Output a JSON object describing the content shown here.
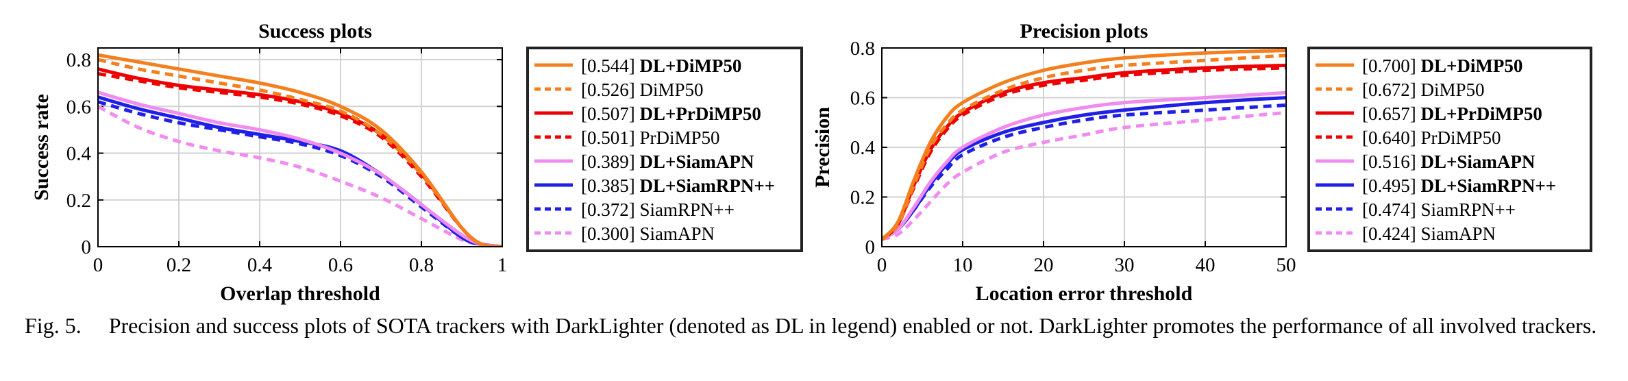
{
  "colors": {
    "orange": "#f47f1e",
    "red": "#ee0000",
    "violet": "#f08cf0",
    "blue": "#1f1fe6",
    "grid": "#d2d2d2"
  },
  "caption": {
    "label": "Fig. 5.",
    "text": "Precision and success plots of SOTA trackers with DarkLighter (denoted as DL in legend) enabled or not. DarkLighter promotes the performance of all involved trackers."
  },
  "chart_data": [
    {
      "type": "line",
      "title": "Success plots",
      "xlabel": "Overlap threshold",
      "ylabel": "Success rate",
      "xlim": [
        0,
        1
      ],
      "ylim": [
        0,
        0.85
      ],
      "xticks": [
        "0",
        "0.2",
        "0.4",
        "0.6",
        "0.8",
        "1"
      ],
      "yticks": [
        "0",
        "0.2",
        "0.4",
        "0.6",
        "0.8"
      ],
      "grid": true,
      "legend_position": "outside-right",
      "x": [
        0,
        0.1,
        0.2,
        0.3,
        0.4,
        0.5,
        0.6,
        0.7,
        0.8,
        0.9,
        0.95,
        1.0
      ],
      "series": [
        {
          "name": "[0.544] DL+DiMP50",
          "score": "[0.544]",
          "label": "DL+DiMP50",
          "bold": true,
          "color": "orange",
          "dash": "solid",
          "values": [
            0.82,
            0.79,
            0.76,
            0.73,
            0.7,
            0.66,
            0.6,
            0.5,
            0.32,
            0.08,
            0.01,
            0.0
          ]
        },
        {
          "name": "[0.526] DiMP50",
          "score": "[0.526]",
          "label": "DiMP50",
          "bold": false,
          "color": "orange",
          "dash": "dashed",
          "values": [
            0.8,
            0.76,
            0.73,
            0.7,
            0.67,
            0.63,
            0.58,
            0.48,
            0.31,
            0.08,
            0.01,
            0.0
          ]
        },
        {
          "name": "[0.507] DL+PrDiMP50",
          "score": "[0.507]",
          "label": "DL+PrDiMP50",
          "bold": true,
          "color": "red",
          "dash": "solid",
          "values": [
            0.76,
            0.72,
            0.69,
            0.67,
            0.65,
            0.62,
            0.57,
            0.48,
            0.31,
            0.08,
            0.01,
            0.0
          ]
        },
        {
          "name": "[0.501] PrDiMP50",
          "score": "[0.501]",
          "label": "PrDiMP50",
          "bold": false,
          "color": "red",
          "dash": "dashed",
          "values": [
            0.74,
            0.71,
            0.68,
            0.66,
            0.64,
            0.61,
            0.56,
            0.47,
            0.3,
            0.08,
            0.01,
            0.0
          ]
        },
        {
          "name": "[0.389] DL+SiamAPN",
          "score": "[0.389]",
          "label": "DL+SiamAPN",
          "bold": true,
          "color": "violet",
          "dash": "solid",
          "values": [
            0.66,
            0.61,
            0.57,
            0.53,
            0.5,
            0.46,
            0.4,
            0.31,
            0.18,
            0.05,
            0.01,
            0.0
          ]
        },
        {
          "name": "[0.385] DL+SiamRPN++",
          "score": "[0.385]",
          "label": "DL+SiamRPN++",
          "bold": true,
          "color": "blue",
          "dash": "solid",
          "values": [
            0.64,
            0.59,
            0.55,
            0.51,
            0.48,
            0.45,
            0.41,
            0.31,
            0.18,
            0.04,
            0.01,
            0.0
          ]
        },
        {
          "name": "[0.372] SiamRPN++",
          "score": "[0.372]",
          "label": "SiamRPN++",
          "bold": false,
          "color": "blue",
          "dash": "dashed",
          "values": [
            0.62,
            0.57,
            0.53,
            0.5,
            0.47,
            0.44,
            0.39,
            0.3,
            0.17,
            0.04,
            0.01,
            0.0
          ]
        },
        {
          "name": "[0.300] SiamAPN",
          "score": "[0.300]",
          "label": "SiamAPN",
          "bold": false,
          "color": "violet",
          "dash": "dashed",
          "values": [
            0.6,
            0.51,
            0.45,
            0.41,
            0.38,
            0.34,
            0.28,
            0.21,
            0.12,
            0.03,
            0.01,
            0.0
          ]
        }
      ]
    },
    {
      "type": "line",
      "title": "Precision plots",
      "xlabel": "Location error threshold",
      "ylabel": "Precision",
      "xlim": [
        0,
        50
      ],
      "ylim": [
        0,
        0.8
      ],
      "xticks": [
        "0",
        "10",
        "20",
        "30",
        "40",
        "50"
      ],
      "yticks": [
        "0",
        "0.2",
        "0.4",
        "0.6",
        "0.8"
      ],
      "grid": true,
      "legend_position": "outside-right",
      "x": [
        0,
        2,
        4,
        6,
        8,
        10,
        15,
        20,
        25,
        30,
        40,
        50
      ],
      "series": [
        {
          "name": "[0.700] DL+DiMP50",
          "score": "[0.700]",
          "label": "DL+DiMP50",
          "bold": true,
          "color": "orange",
          "dash": "solid",
          "values": [
            0.03,
            0.1,
            0.27,
            0.42,
            0.52,
            0.58,
            0.66,
            0.71,
            0.74,
            0.76,
            0.78,
            0.79
          ]
        },
        {
          "name": "[0.672] DiMP50",
          "score": "[0.672]",
          "label": "DiMP50",
          "bold": false,
          "color": "orange",
          "dash": "dashed",
          "values": [
            0.03,
            0.09,
            0.25,
            0.4,
            0.49,
            0.55,
            0.63,
            0.68,
            0.71,
            0.73,
            0.75,
            0.77
          ]
        },
        {
          "name": "[0.657] DL+PrDiMP50",
          "score": "[0.657]",
          "label": "DL+PrDiMP50",
          "bold": true,
          "color": "red",
          "dash": "solid",
          "values": [
            0.03,
            0.09,
            0.25,
            0.39,
            0.48,
            0.54,
            0.62,
            0.66,
            0.68,
            0.7,
            0.72,
            0.73
          ]
        },
        {
          "name": "[0.640] PrDiMP50",
          "score": "[0.640]",
          "label": "PrDiMP50",
          "bold": false,
          "color": "red",
          "dash": "dashed",
          "values": [
            0.03,
            0.09,
            0.24,
            0.38,
            0.47,
            0.53,
            0.61,
            0.65,
            0.67,
            0.69,
            0.71,
            0.72
          ]
        },
        {
          "name": "[0.516] DL+SiamAPN",
          "score": "[0.516]",
          "label": "DL+SiamAPN",
          "bold": true,
          "color": "violet",
          "dash": "solid",
          "values": [
            0.03,
            0.07,
            0.16,
            0.26,
            0.34,
            0.4,
            0.48,
            0.53,
            0.56,
            0.58,
            0.6,
            0.62
          ]
        },
        {
          "name": "[0.495] DL+SiamRPN++",
          "score": "[0.495]",
          "label": "DL+SiamRPN++",
          "bold": true,
          "color": "blue",
          "dash": "solid",
          "values": [
            0.03,
            0.07,
            0.15,
            0.25,
            0.33,
            0.39,
            0.46,
            0.5,
            0.53,
            0.55,
            0.58,
            0.6
          ]
        },
        {
          "name": "[0.474] SiamRPN++",
          "score": "[0.474]",
          "label": "SiamRPN++",
          "bold": false,
          "color": "blue",
          "dash": "dashed",
          "values": [
            0.03,
            0.07,
            0.15,
            0.24,
            0.31,
            0.37,
            0.44,
            0.48,
            0.51,
            0.53,
            0.55,
            0.57
          ]
        },
        {
          "name": "[0.424] SiamAPN",
          "score": "[0.424]",
          "label": "SiamAPN",
          "bold": false,
          "color": "violet",
          "dash": "dashed",
          "values": [
            0.03,
            0.05,
            0.11,
            0.18,
            0.25,
            0.3,
            0.38,
            0.42,
            0.45,
            0.48,
            0.51,
            0.54
          ]
        }
      ]
    }
  ]
}
